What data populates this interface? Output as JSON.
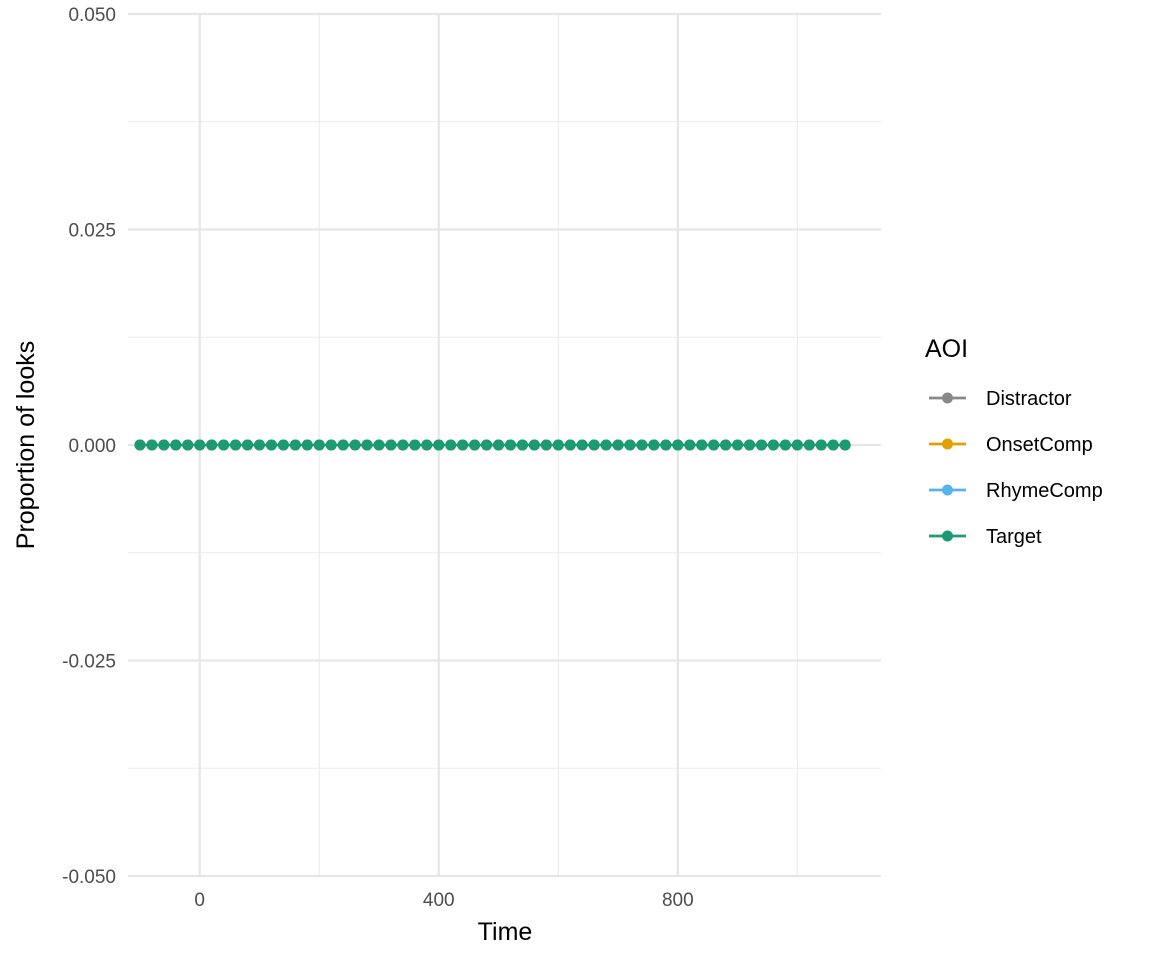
{
  "chart_data": {
    "type": "line",
    "title": "",
    "xlabel": "Time",
    "ylabel": "Proportion of looks",
    "xlim": [
      -120,
      1140
    ],
    "ylim": [
      -0.05,
      0.05
    ],
    "x_ticks": [
      0,
      400,
      800
    ],
    "x_tick_labels": [
      "0",
      "400",
      "800"
    ],
    "y_ticks": [
      -0.05,
      -0.025,
      0,
      0.025,
      0.05
    ],
    "y_tick_labels": [
      "-0.050",
      "-0.025",
      "0.000",
      "0.025",
      "0.050"
    ],
    "grid": true,
    "legend": {
      "title": "AOI",
      "position": "right"
    },
    "x": [
      -100,
      -80,
      -60,
      -40,
      -20,
      0,
      20,
      40,
      60,
      80,
      100,
      120,
      140,
      160,
      180,
      200,
      220,
      240,
      260,
      280,
      300,
      320,
      340,
      360,
      380,
      400,
      420,
      440,
      460,
      480,
      500,
      520,
      540,
      560,
      580,
      600,
      620,
      640,
      660,
      680,
      700,
      720,
      740,
      760,
      780,
      800,
      820,
      840,
      860,
      880,
      900,
      920,
      940,
      960,
      980,
      1000,
      1020,
      1040,
      1060,
      1080
    ],
    "series": [
      {
        "name": "Distractor",
        "color": "#898989",
        "values": [
          0,
          0,
          0,
          0,
          0,
          0,
          0,
          0,
          0,
          0,
          0,
          0,
          0,
          0,
          0,
          0,
          0,
          0,
          0,
          0,
          0,
          0,
          0,
          0,
          0,
          0,
          0,
          0,
          0,
          0,
          0,
          0,
          0,
          0,
          0,
          0,
          0,
          0,
          0,
          0,
          0,
          0,
          0,
          0,
          0,
          0,
          0,
          0,
          0,
          0,
          0,
          0,
          0,
          0,
          0,
          0,
          0,
          0,
          0,
          0
        ]
      },
      {
        "name": "OnsetComp",
        "color": "#E69F00",
        "values": [
          0,
          0,
          0,
          0,
          0,
          0,
          0,
          0,
          0,
          0,
          0,
          0,
          0,
          0,
          0,
          0,
          0,
          0,
          0,
          0,
          0,
          0,
          0,
          0,
          0,
          0,
          0,
          0,
          0,
          0,
          0,
          0,
          0,
          0,
          0,
          0,
          0,
          0,
          0,
          0,
          0,
          0,
          0,
          0,
          0,
          0,
          0,
          0,
          0,
          0,
          0,
          0,
          0,
          0,
          0,
          0,
          0,
          0,
          0,
          0
        ]
      },
      {
        "name": "RhymeComp",
        "color": "#56B4E9",
        "values": [
          0,
          0,
          0,
          0,
          0,
          0,
          0,
          0,
          0,
          0,
          0,
          0,
          0,
          0,
          0,
          0,
          0,
          0,
          0,
          0,
          0,
          0,
          0,
          0,
          0,
          0,
          0,
          0,
          0,
          0,
          0,
          0,
          0,
          0,
          0,
          0,
          0,
          0,
          0,
          0,
          0,
          0,
          0,
          0,
          0,
          0,
          0,
          0,
          0,
          0,
          0,
          0,
          0,
          0,
          0,
          0,
          0,
          0,
          0,
          0
        ]
      },
      {
        "name": "Target",
        "color": "#1B9A73",
        "values": [
          0,
          0,
          0,
          0,
          0,
          0,
          0,
          0,
          0,
          0,
          0,
          0,
          0,
          0,
          0,
          0,
          0,
          0,
          0,
          0,
          0,
          0,
          0,
          0,
          0,
          0,
          0,
          0,
          0,
          0,
          0,
          0,
          0,
          0,
          0,
          0,
          0,
          0,
          0,
          0,
          0,
          0,
          0,
          0,
          0,
          0,
          0,
          0,
          0,
          0,
          0,
          0,
          0,
          0,
          0,
          0,
          0,
          0,
          0,
          0
        ]
      }
    ]
  }
}
